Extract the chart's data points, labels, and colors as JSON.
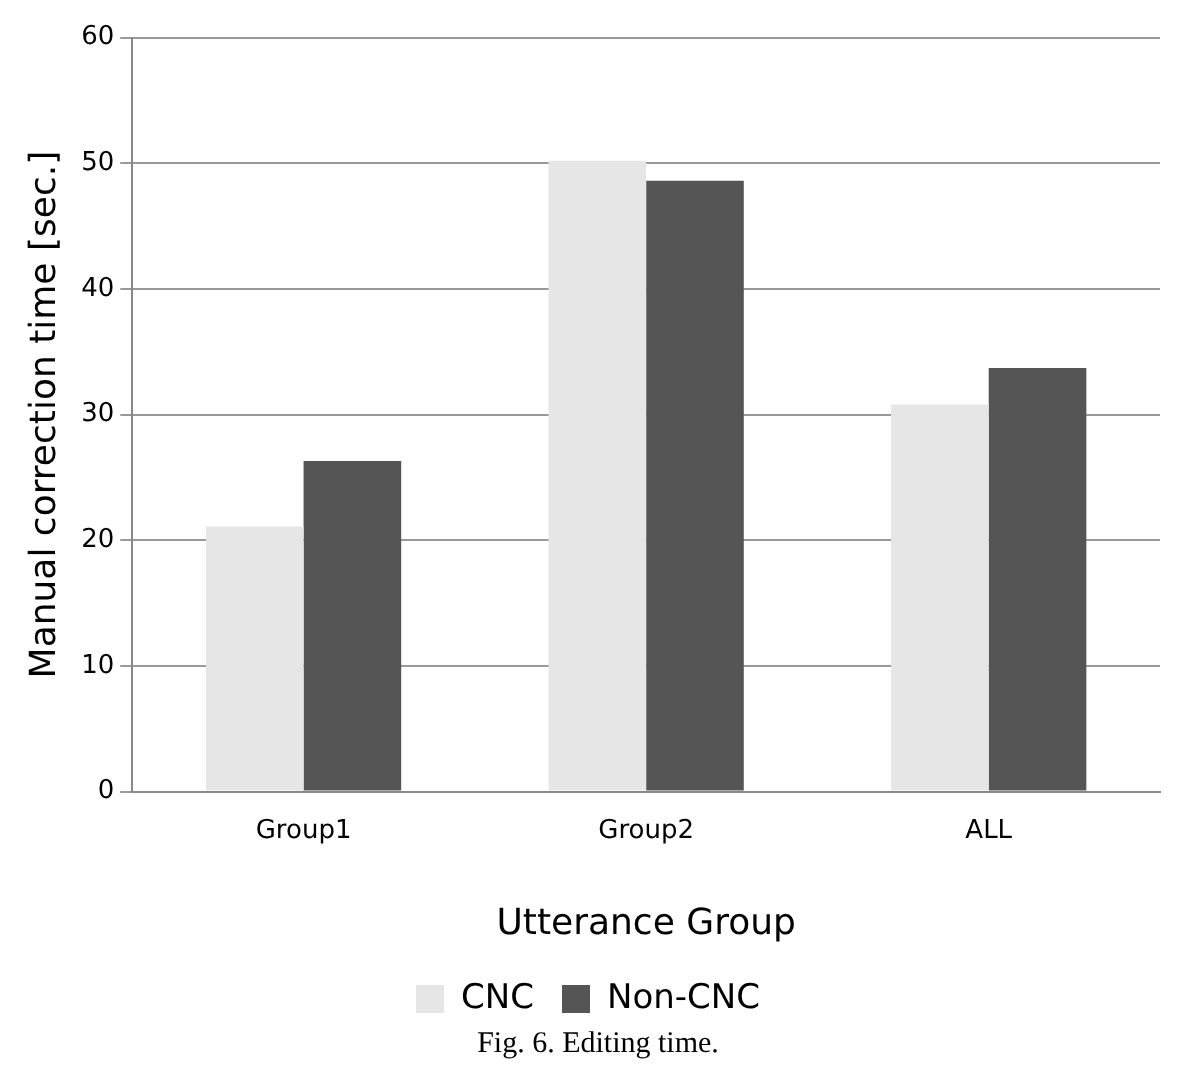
{
  "chart_data": {
    "type": "bar",
    "xlabel": "Utterance Group",
    "ylabel": "Manual correction time [sec.]",
    "categories": [
      "Group1",
      "Group2",
      "ALL"
    ],
    "series": [
      {
        "name": "CNC",
        "color": "#e6e6e6",
        "values": [
          21.1,
          50.2,
          30.8
        ]
      },
      {
        "name": "Non-CNC",
        "color": "#555555",
        "values": [
          26.3,
          48.6,
          33.7
        ]
      }
    ],
    "ylim": [
      0,
      60
    ],
    "yticks": [
      0,
      10,
      20,
      30,
      40,
      50,
      60
    ],
    "grid": "y",
    "legend": "bottom",
    "annotations": [
      "Fig. 6. Editing time."
    ]
  }
}
